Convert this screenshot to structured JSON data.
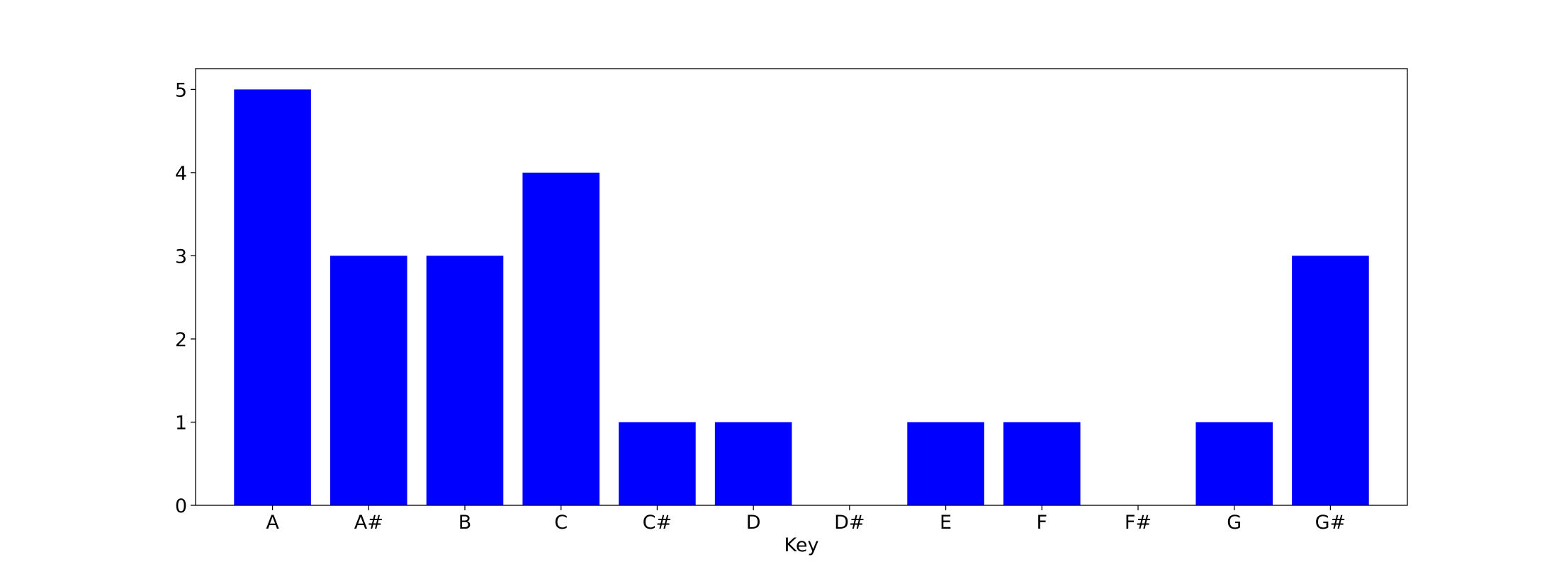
{
  "chart_data": {
    "type": "bar",
    "title": "",
    "xlabel": "Key",
    "ylabel": "",
    "categories": [
      "A",
      "A#",
      "B",
      "C",
      "C#",
      "D",
      "D#",
      "E",
      "F",
      "F#",
      "G",
      "G#"
    ],
    "values": [
      5,
      3,
      3,
      4,
      1,
      1,
      0,
      1,
      1,
      0,
      1,
      3
    ],
    "ylim": [
      0,
      5.25
    ],
    "yticks": [
      0,
      1,
      2,
      3,
      4,
      5
    ],
    "grid": false,
    "legend": "none",
    "colors": {
      "bar": "#0000ff",
      "axis": "#000000",
      "background": "#ffffff"
    }
  }
}
